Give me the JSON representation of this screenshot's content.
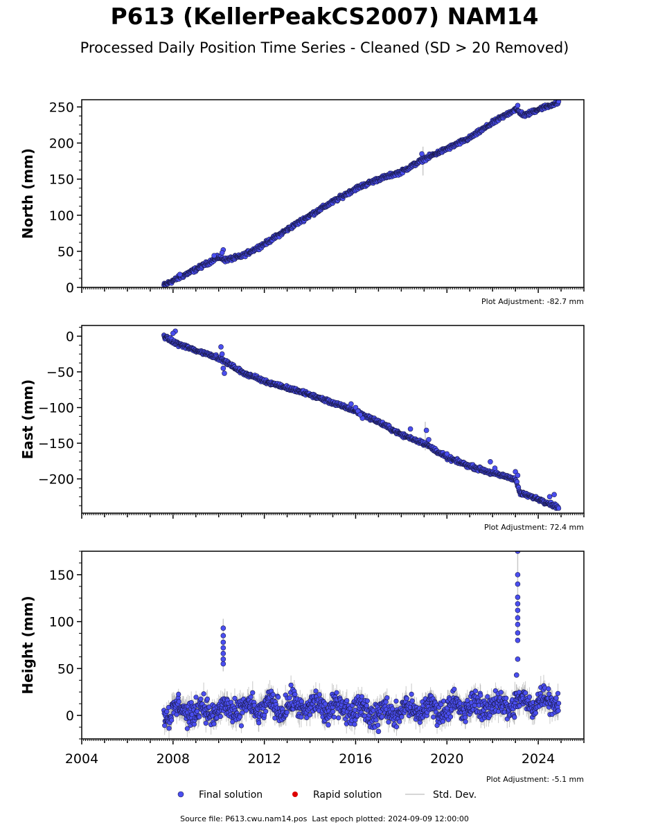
{
  "header": {
    "title": "P613 (KellerPeakCS2007) NAM14",
    "subtitle": "Processed Daily Position Time Series - Cleaned (SD > 20 Removed)"
  },
  "chart_data": [
    {
      "type": "scatter",
      "panel": "north",
      "ylabel": "North (mm)",
      "xlim": [
        2004,
        2026
      ],
      "ylim": [
        0,
        260
      ],
      "yticks": [
        0,
        50,
        100,
        150,
        200,
        250
      ],
      "adjustment_label": "Plot Adjustment: -82.7 mm",
      "trend": [
        [
          2007.6,
          3
        ],
        [
          2009.0,
          25
        ],
        [
          2010.0,
          42
        ],
        [
          2010.3,
          38
        ],
        [
          2011.0,
          43
        ],
        [
          2012.0,
          60
        ],
        [
          2014.0,
          100
        ],
        [
          2016.0,
          137
        ],
        [
          2017.0,
          150
        ],
        [
          2018.0,
          160
        ],
        [
          2019.0,
          178
        ],
        [
          2020.0,
          192
        ],
        [
          2021.0,
          207
        ],
        [
          2022.0,
          228
        ],
        [
          2023.0,
          247
        ],
        [
          2023.4,
          238
        ],
        [
          2024.0,
          247
        ],
        [
          2024.9,
          256
        ]
      ],
      "noise": 2,
      "outliers": [
        [
          2010.2,
          52
        ],
        [
          2010.15,
          48
        ],
        [
          2009.8,
          44
        ],
        [
          2008.3,
          18
        ],
        [
          2018.9,
          185
        ],
        [
          2023.1,
          252
        ]
      ],
      "errorbars": [
        [
          2018.95,
          175,
          20
        ]
      ]
    },
    {
      "type": "scatter",
      "panel": "east",
      "ylabel": "East (mm)",
      "xlim": [
        2004,
        2026
      ],
      "ylim": [
        -248,
        15
      ],
      "yticks": [
        -200,
        -150,
        -100,
        -50,
        0
      ],
      "adjustment_label": "Plot Adjustment: 72.4 mm",
      "trend": [
        [
          2007.6,
          0
        ],
        [
          2008.0,
          -8
        ],
        [
          2009.0,
          -20
        ],
        [
          2010.0,
          -30
        ],
        [
          2011.0,
          -50
        ],
        [
          2012.0,
          -63
        ],
        [
          2014.0,
          -82
        ],
        [
          2016.0,
          -105
        ],
        [
          2017.0,
          -120
        ],
        [
          2018.0,
          -138
        ],
        [
          2019.0,
          -150
        ],
        [
          2020.0,
          -170
        ],
        [
          2021.0,
          -182
        ],
        [
          2022.0,
          -192
        ],
        [
          2023.0,
          -200
        ],
        [
          2023.2,
          -220
        ],
        [
          2024.0,
          -228
        ],
        [
          2024.9,
          -240
        ]
      ],
      "noise": 2,
      "outliers": [
        [
          2008.1,
          7
        ],
        [
          2008.0,
          4
        ],
        [
          2010.1,
          -15
        ],
        [
          2010.15,
          -25
        ],
        [
          2010.2,
          -45
        ],
        [
          2010.25,
          -52
        ],
        [
          2015.8,
          -95
        ],
        [
          2016.0,
          -100
        ],
        [
          2016.1,
          -105
        ],
        [
          2016.3,
          -115
        ],
        [
          2016.2,
          -110
        ],
        [
          2018.4,
          -130
        ],
        [
          2019.1,
          -132
        ],
        [
          2019.2,
          -145
        ],
        [
          2020.0,
          -165
        ],
        [
          2021.9,
          -176
        ],
        [
          2022.1,
          -185
        ],
        [
          2023.0,
          -190
        ],
        [
          2023.1,
          -195
        ],
        [
          2024.5,
          -225
        ],
        [
          2024.7,
          -222
        ]
      ],
      "errorbars": [
        [
          2019.05,
          -140,
          20
        ]
      ]
    },
    {
      "type": "scatter",
      "panel": "height",
      "ylabel": "Height (mm)",
      "xlim": [
        2004,
        2026
      ],
      "ylim": [
        -25,
        175
      ],
      "yticks": [
        0,
        50,
        100,
        150
      ],
      "adjustment_label": "Plot Adjustment: -5.1 mm",
      "trend": [
        [
          2007.6,
          5
        ],
        [
          2010.0,
          5
        ],
        [
          2013.0,
          10
        ],
        [
          2016.0,
          8
        ],
        [
          2017.0,
          2
        ],
        [
          2018.0,
          5
        ],
        [
          2020.0,
          8
        ],
        [
          2023.0,
          12
        ],
        [
          2024.9,
          18
        ]
      ],
      "noise": 9,
      "outliers": [
        [
          2010.2,
          93
        ],
        [
          2010.2,
          85
        ],
        [
          2010.2,
          78
        ],
        [
          2010.2,
          72
        ],
        [
          2010.2,
          66
        ],
        [
          2010.2,
          60
        ],
        [
          2010.2,
          55
        ],
        [
          2023.1,
          175
        ],
        [
          2023.1,
          150
        ],
        [
          2023.1,
          140
        ],
        [
          2023.1,
          126
        ],
        [
          2023.1,
          119
        ],
        [
          2023.1,
          112
        ],
        [
          2023.1,
          104
        ],
        [
          2023.1,
          97
        ],
        [
          2023.1,
          88
        ],
        [
          2023.1,
          80
        ],
        [
          2023.1,
          60
        ],
        [
          2023.05,
          43
        ],
        [
          2014.8,
          -10
        ],
        [
          2017.0,
          -17
        ]
      ],
      "errorbars": [
        [
          2010.2,
          75,
          28
        ],
        [
          2023.1,
          130,
          45
        ]
      ]
    }
  ],
  "x_axis": {
    "tick_labels": [
      "2004",
      "2008",
      "2012",
      "2016",
      "2020",
      "2024"
    ]
  },
  "legend": {
    "final_label": "Final solution",
    "rapid_label": "Rapid solution",
    "std_label": "Std. Dev."
  },
  "footer": {
    "source": "Source file: P613.cwu.nam14.pos  Last epoch plotted: 2024-09-09 12:00:00"
  },
  "colors": {
    "final": "#4a4ef0",
    "final_edge": "#1a1a4a",
    "rapid": "#dd0000",
    "stddev": "#c8c8c8"
  }
}
